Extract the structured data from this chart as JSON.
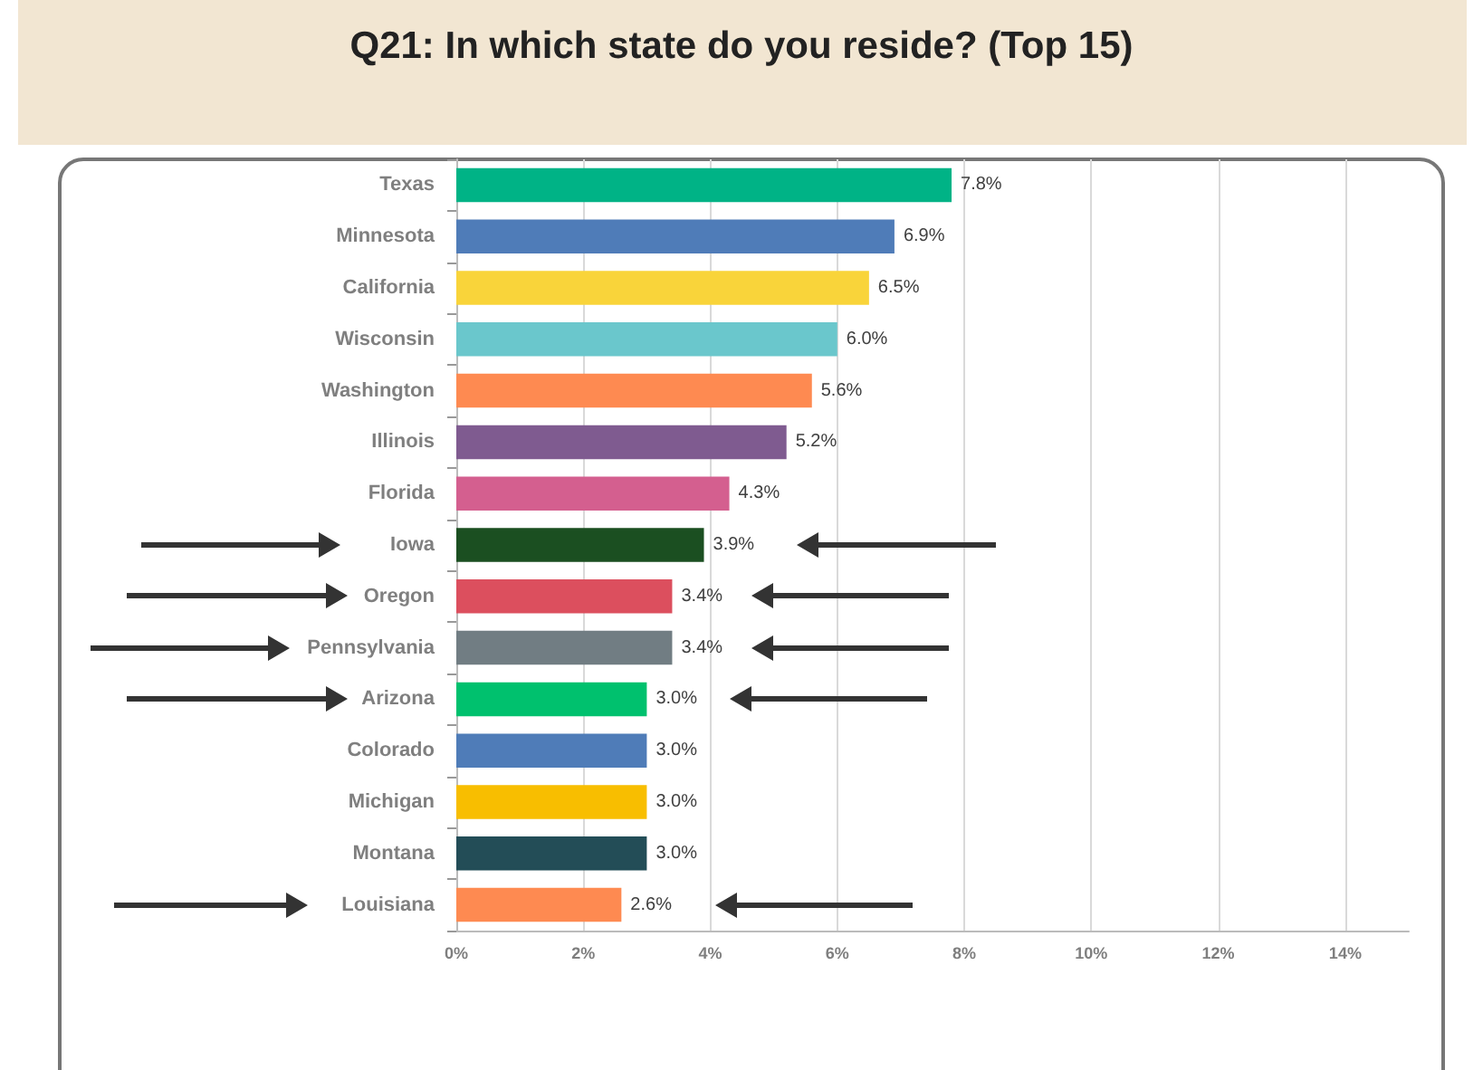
{
  "chart_data": {
    "type": "bar",
    "orientation": "horizontal",
    "title": "Q21: In which state do you reside? (Top 15)",
    "categories": [
      "Texas",
      "Minnesota",
      "California",
      "Wisconsin",
      "Washington",
      "Illinois",
      "Florida",
      "Iowa",
      "Oregon",
      "Pennsylvania",
      "Arizona",
      "Colorado",
      "Michigan",
      "Montana",
      "Louisiana"
    ],
    "values": [
      7.8,
      6.9,
      6.5,
      6.0,
      5.6,
      5.2,
      4.3,
      3.9,
      3.4,
      3.4,
      3.0,
      3.0,
      3.0,
      3.0,
      2.6
    ],
    "value_labels": [
      "7.8%",
      "6.9%",
      "6.5%",
      "6.0%",
      "5.6%",
      "5.2%",
      "4.3%",
      "3.9%",
      "3.4%",
      "3.4%",
      "3.0%",
      "3.0%",
      "3.0%",
      "3.0%",
      "2.6%"
    ],
    "colors": [
      "#00b386",
      "#4f7cb8",
      "#f9d43a",
      "#6ac7cc",
      "#fe8a51",
      "#7f5b90",
      "#d45f8f",
      "#1b4f21",
      "#dc4f5e",
      "#717d83",
      "#00c16e",
      "#4f7cb8",
      "#f8be00",
      "#234d57",
      "#fe8a51"
    ],
    "xlim": [
      0,
      15
    ],
    "xticks": [
      {
        "value": 0,
        "label": "0%"
      },
      {
        "value": 2,
        "label": "2%"
      },
      {
        "value": 4,
        "label": "4%"
      },
      {
        "value": 6,
        "label": "6%"
      },
      {
        "value": 8,
        "label": "8%"
      },
      {
        "value": 10,
        "label": "10%"
      },
      {
        "value": 12,
        "label": "12%"
      },
      {
        "value": 14,
        "label": "14%"
      }
    ],
    "grid": "x"
  }
}
